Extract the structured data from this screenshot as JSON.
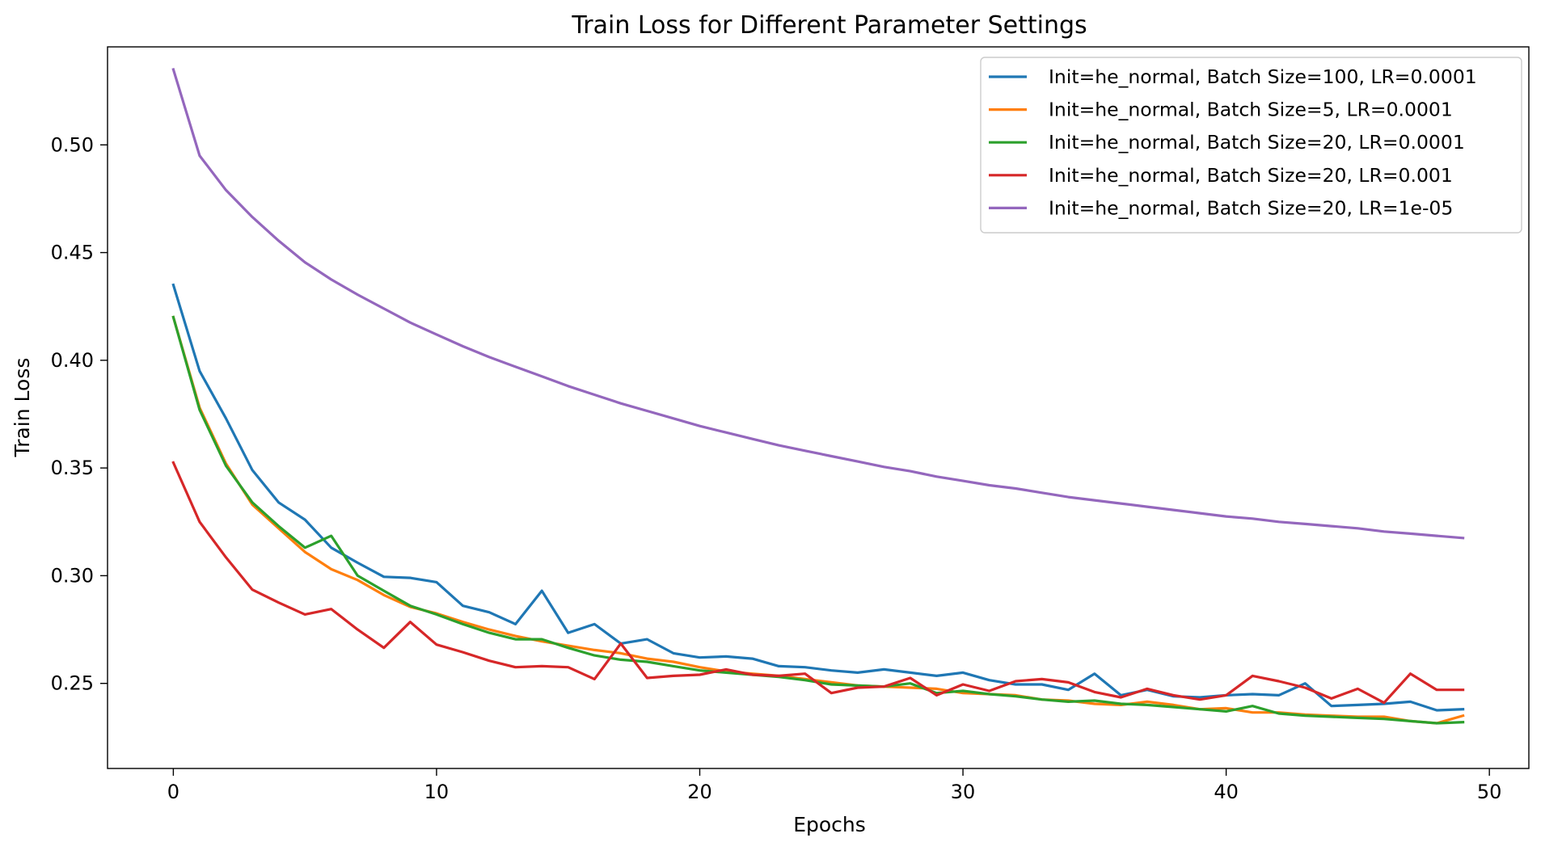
{
  "chart_data": {
    "type": "line",
    "title": "Train Loss for Different Parameter Settings",
    "xlabel": "Epochs",
    "ylabel": "Train Loss",
    "xlim": [
      -2.5,
      51.5
    ],
    "ylim": [
      0.2105,
      0.5455
    ],
    "xticks": [
      0,
      10,
      20,
      30,
      40,
      50
    ],
    "xtick_labels": [
      "0",
      "10",
      "20",
      "30",
      "40",
      "50"
    ],
    "yticks": [
      0.25,
      0.3,
      0.35,
      0.4,
      0.45,
      0.5
    ],
    "ytick_labels": [
      "0.25",
      "0.30",
      "0.35",
      "0.40",
      "0.45",
      "0.50"
    ],
    "grid": false,
    "legend_position": "top-right",
    "x": [
      0,
      1,
      2,
      3,
      4,
      5,
      6,
      7,
      8,
      9,
      10,
      11,
      12,
      13,
      14,
      15,
      16,
      17,
      18,
      19,
      20,
      21,
      22,
      23,
      24,
      25,
      26,
      27,
      28,
      29,
      30,
      31,
      32,
      33,
      34,
      35,
      36,
      37,
      38,
      39,
      40,
      41,
      42,
      43,
      44,
      45,
      46,
      47,
      48,
      49
    ],
    "series": [
      {
        "name": "Init=he_normal, Batch Size=100, LR=0.0001",
        "color": "#1f77b4",
        "values": [
          0.435,
          0.395,
          0.373,
          0.349,
          0.334,
          0.326,
          0.313,
          0.306,
          0.2995,
          0.299,
          0.297,
          0.286,
          0.283,
          0.2775,
          0.293,
          0.2735,
          0.2775,
          0.2685,
          0.2705,
          0.264,
          0.262,
          0.2625,
          0.2615,
          0.258,
          0.2575,
          0.256,
          0.255,
          0.2565,
          0.255,
          0.2535,
          0.255,
          0.2515,
          0.2495,
          0.2495,
          0.247,
          0.2545,
          0.2445,
          0.247,
          0.244,
          0.2435,
          0.2445,
          0.245,
          0.2445,
          0.25,
          0.2395,
          0.24,
          0.2405,
          0.2415,
          0.2375,
          0.238
        ]
      },
      {
        "name": "Init=he_normal, Batch Size=5, LR=0.0001",
        "color": "#ff7f0e",
        "values": [
          0.42,
          0.378,
          0.352,
          0.333,
          0.322,
          0.311,
          0.303,
          0.298,
          0.291,
          0.2855,
          0.2825,
          0.2785,
          0.275,
          0.272,
          0.2695,
          0.2675,
          0.2655,
          0.264,
          0.2615,
          0.26,
          0.2575,
          0.2555,
          0.2545,
          0.2535,
          0.252,
          0.2505,
          0.249,
          0.2485,
          0.248,
          0.2475,
          0.2455,
          0.245,
          0.2445,
          0.2425,
          0.242,
          0.2405,
          0.24,
          0.2415,
          0.24,
          0.238,
          0.2385,
          0.2365,
          0.2365,
          0.2355,
          0.235,
          0.2345,
          0.2345,
          0.2325,
          0.2315,
          0.235
        ]
      },
      {
        "name": "Init=he_normal, Batch Size=20, LR=0.0001",
        "color": "#2ca02c",
        "values": [
          0.42,
          0.377,
          0.351,
          0.334,
          0.323,
          0.313,
          0.3185,
          0.3,
          0.293,
          0.286,
          0.282,
          0.2775,
          0.2735,
          0.2705,
          0.2705,
          0.2665,
          0.263,
          0.261,
          0.26,
          0.258,
          0.256,
          0.255,
          0.254,
          0.253,
          0.2515,
          0.2495,
          0.249,
          0.2485,
          0.25,
          0.2455,
          0.2465,
          0.245,
          0.244,
          0.2425,
          0.2415,
          0.242,
          0.2405,
          0.24,
          0.239,
          0.238,
          0.237,
          0.2395,
          0.236,
          0.235,
          0.2345,
          0.234,
          0.2335,
          0.2325,
          0.2315,
          0.232
        ]
      },
      {
        "name": "Init=he_normal, Batch Size=20, LR=0.001",
        "color": "#d62728",
        "values": [
          0.3525,
          0.325,
          0.3085,
          0.2935,
          0.2875,
          0.282,
          0.2845,
          0.275,
          0.2665,
          0.2785,
          0.268,
          0.2645,
          0.2605,
          0.2575,
          0.258,
          0.2575,
          0.252,
          0.2685,
          0.2525,
          0.2535,
          0.254,
          0.2565,
          0.254,
          0.2535,
          0.2545,
          0.2455,
          0.248,
          0.2485,
          0.2525,
          0.2445,
          0.2495,
          0.2465,
          0.251,
          0.252,
          0.2505,
          0.246,
          0.2435,
          0.2475,
          0.2445,
          0.2425,
          0.2445,
          0.2535,
          0.251,
          0.248,
          0.243,
          0.2475,
          0.241,
          0.2545,
          0.247,
          0.247
        ]
      },
      {
        "name": "Init=he_normal, Batch Size=20, LR=1e-05",
        "color": "#9467bd",
        "values": [
          0.535,
          0.495,
          0.479,
          0.4665,
          0.4555,
          0.4455,
          0.4375,
          0.4305,
          0.424,
          0.4175,
          0.412,
          0.4065,
          0.4015,
          0.397,
          0.3925,
          0.388,
          0.384,
          0.38,
          0.3765,
          0.373,
          0.3695,
          0.3665,
          0.3635,
          0.3605,
          0.358,
          0.3555,
          0.353,
          0.3505,
          0.3485,
          0.346,
          0.344,
          0.342,
          0.3405,
          0.3385,
          0.3365,
          0.335,
          0.3335,
          0.332,
          0.3305,
          0.329,
          0.3275,
          0.3265,
          0.325,
          0.324,
          0.323,
          0.322,
          0.3205,
          0.3195,
          0.3185,
          0.3175
        ]
      }
    ]
  }
}
